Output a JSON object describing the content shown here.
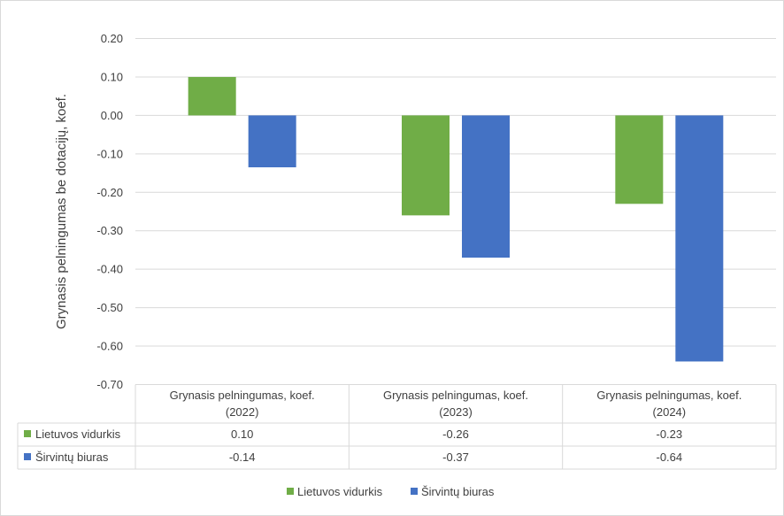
{
  "chart_data": {
    "type": "bar",
    "ylabel": "Grynasis pelningumas be dotacijų, koef.",
    "ylim": [
      -0.7,
      0.2
    ],
    "ytick_step": 0.1,
    "yticks": [
      "0.20",
      "0.10",
      "0.00",
      "-0.10",
      "-0.20",
      "-0.30",
      "-0.40",
      "-0.50",
      "-0.60",
      "-0.70"
    ],
    "grid": true,
    "legend_position": "bottom",
    "categories": [
      {
        "line1": "Grynasis pelningumas, koef.",
        "line2": "(2022)"
      },
      {
        "line1": "Grynasis pelningumas, koef.",
        "line2": "(2023)"
      },
      {
        "line1": "Grynasis pelningumas, koef.",
        "line2": "(2024)"
      }
    ],
    "series": [
      {
        "name": "Lietuvos vidurkis",
        "color": "#70ad47",
        "values": [
          0.1,
          -0.26,
          -0.23
        ],
        "labels": [
          "0.10",
          "-0.26",
          "-0.23"
        ]
      },
      {
        "name": "Širvintų biuras",
        "color": "#4472c4",
        "values": [
          -0.135,
          -0.37,
          -0.64
        ],
        "labels": [
          "-0.14",
          "-0.37",
          "-0.64"
        ]
      }
    ]
  }
}
